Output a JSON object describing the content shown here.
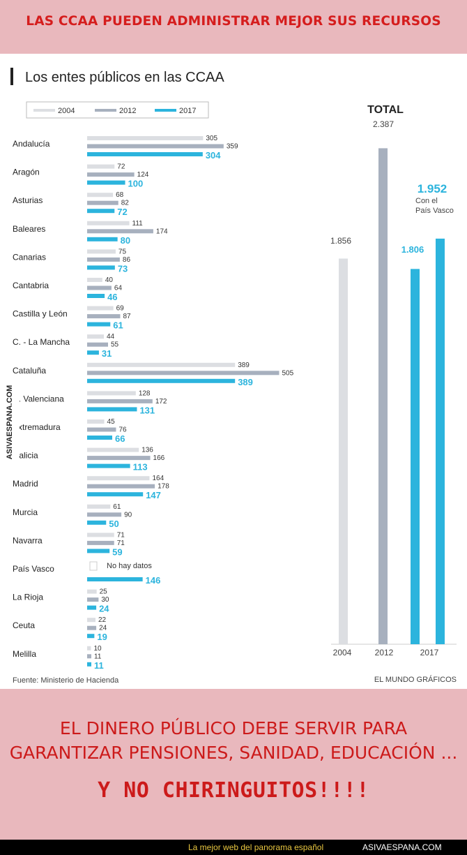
{
  "top_banner": {
    "text": "LAS CCAA PUEDEN ADMINISTRAR MEJOR SUS RECURSOS"
  },
  "bottom_banner": {
    "line1": "EL DINERO PÚBLICO DEBE SERVIR PARA",
    "line2": "GARANTIZAR PENSIONES, SANIDAD, EDUCACIÓN ...",
    "line3": "Y NO CHIRINGUITOS!!!!"
  },
  "watermark": {
    "text": "ASIVAESPANA.COM"
  },
  "footer": {
    "slogan": "La mejor web del panorama español",
    "site": "ASIVAESPANA.COM"
  },
  "colors": {
    "y2004": "#dcdee2",
    "y2012": "#a7b0be",
    "y2017": "#2cb4dd",
    "banner_bg": "#e9b8bd",
    "banner_text": "#d51d1d"
  },
  "chart_data": [
    {
      "type": "bar",
      "orientation": "horizontal",
      "title": "Los entes públicos en las CCAA",
      "legend": [
        "2004",
        "2012",
        "2017"
      ],
      "legend_position": "top-left",
      "categories": [
        "Andalucía",
        "Aragón",
        "Asturias",
        "Baleares",
        "Canarias",
        "Cantabria",
        "Castilla y León",
        "C. - La Mancha",
        "Cataluña",
        "C. Valenciana",
        "Extremadura",
        "Galicia",
        "Madrid",
        "Murcia",
        "Navarra",
        "País Vasco",
        "La Rioja",
        "Ceuta",
        "Melilla"
      ],
      "series": [
        {
          "name": "2004",
          "values": [
            305,
            72,
            68,
            111,
            75,
            40,
            69,
            44,
            389,
            128,
            45,
            136,
            164,
            61,
            71,
            null,
            25,
            22,
            10
          ]
        },
        {
          "name": "2012",
          "values": [
            359,
            124,
            82,
            174,
            86,
            64,
            87,
            55,
            505,
            172,
            76,
            166,
            178,
            90,
            71,
            null,
            30,
            24,
            11
          ]
        },
        {
          "name": "2017",
          "values": [
            304,
            100,
            72,
            80,
            73,
            46,
            61,
            31,
            389,
            131,
            66,
            113,
            147,
            50,
            59,
            146,
            24,
            19,
            11
          ]
        }
      ],
      "annotations": [
        {
          "category": "País Vasco",
          "text": "No hay datos"
        }
      ],
      "source": "Fuente: Ministerio de Hacienda",
      "grid": false
    },
    {
      "type": "bar",
      "orientation": "vertical",
      "title": "TOTAL",
      "categories": [
        "2004",
        "2012",
        "2017",
        "2017"
      ],
      "values": [
        1856,
        2387,
        1806,
        1952
      ],
      "labels": [
        "1.856",
        "2.387",
        "1.806",
        "1.952"
      ],
      "annotations": [
        {
          "bar": 3,
          "text": "Con el País Vasco"
        }
      ],
      "credit": "EL MUNDO GRÁFICOS",
      "grid": false
    }
  ]
}
